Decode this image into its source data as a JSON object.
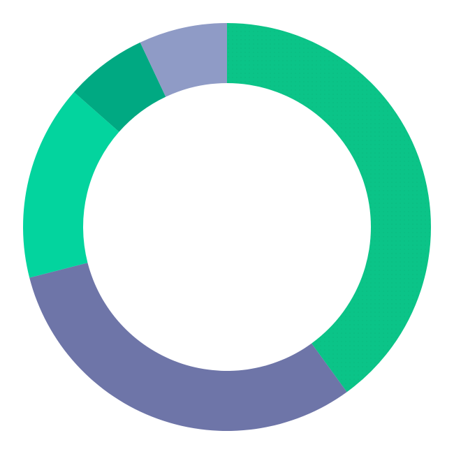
{
  "chart_data": {
    "type": "pie",
    "donut": true,
    "start": "top",
    "direction": "clockwise",
    "legend": "none",
    "slices": [
      {
        "value": 40.0,
        "color": "#0bc488",
        "texture": "dotted"
      },
      {
        "value": 31.0,
        "color": "#6e75a8"
      },
      {
        "value": 15.5,
        "color": "#03d49e"
      },
      {
        "value": 6.5,
        "color": "#00a982"
      },
      {
        "value": 7.0,
        "color": "#8f9bc6"
      }
    ]
  }
}
